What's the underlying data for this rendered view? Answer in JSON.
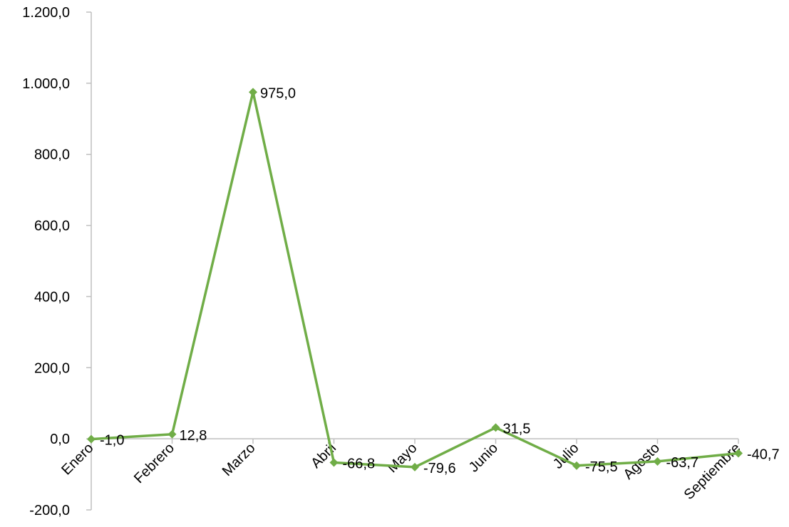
{
  "chart_data": {
    "type": "line",
    "categories": [
      "Enero",
      "Febrero",
      "Marzo",
      "Abril",
      "Mayo",
      "Junio",
      "Julio",
      "Agosto",
      "Septiembre"
    ],
    "series": [
      {
        "values": [
          -1.0,
          12.8,
          975.0,
          -66.8,
          -79.6,
          31.5,
          -75.5,
          -63.7,
          -40.7
        ],
        "labels": [
          "-1,0",
          "12,8",
          "975,0",
          "-66,8",
          "-79,6",
          "31,5",
          "-75,5",
          "-63,7",
          "-40,7"
        ],
        "color": "#70ad47"
      }
    ],
    "ylim": [
      -200,
      1200
    ],
    "yticks": [
      -200,
      0,
      200,
      400,
      600,
      800,
      1000,
      1200
    ],
    "ytick_labels": [
      "-200,0",
      "0,0",
      "200,0",
      "400,0",
      "600,0",
      "800,0",
      "1.000,0",
      "1.200,0"
    ],
    "grid": false,
    "legend": "none",
    "colors": {
      "line": "#70ad47",
      "axis": "#bfbfbf",
      "negative_label": "#ff0000",
      "positive_label": "#000000"
    }
  }
}
